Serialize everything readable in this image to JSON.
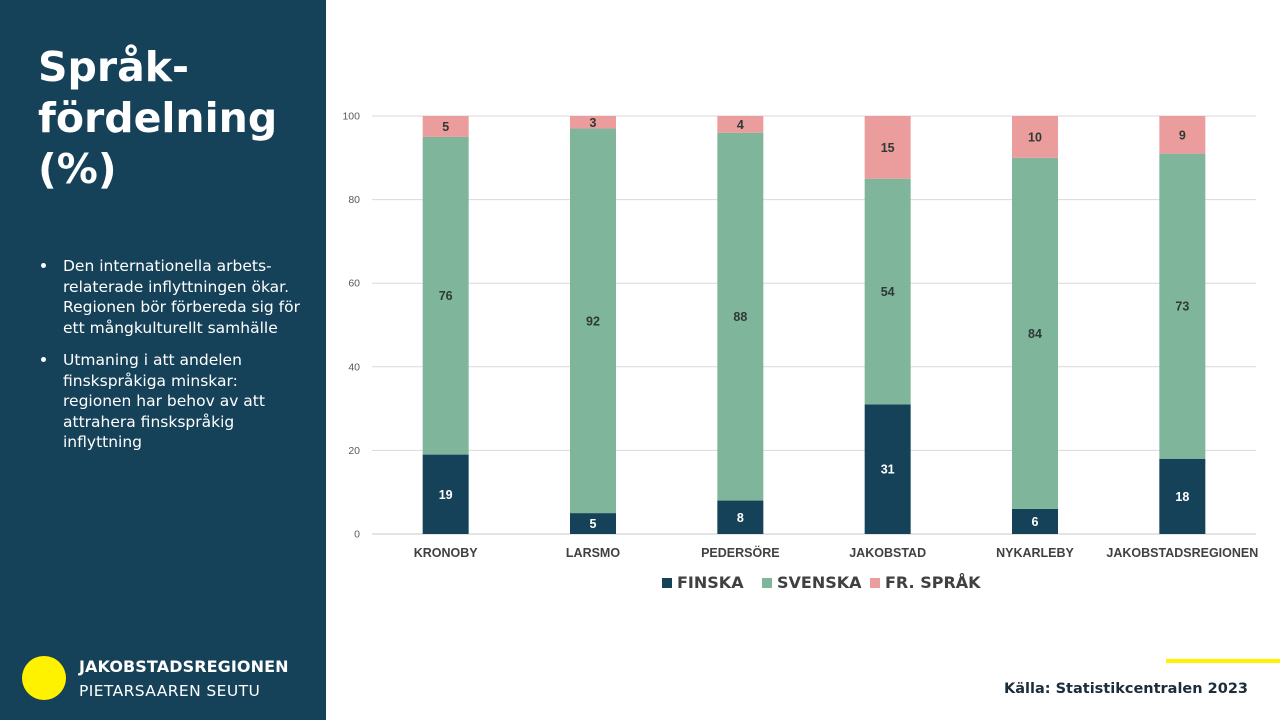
{
  "sidebar": {
    "title": "Språk-fördelning (%)",
    "bullets": [
      "Den internationella arbets-relaterade inflyttningen ökar. Regionen bör förbereda sig för ett mångkulturellt samhälle",
      "Utmaning i att andelen finskspråkiga minskar: regionen har behov av att attrahera finskspråkig inflyttning"
    ],
    "logo": {
      "line1": "JAKOBSTADSREGIONEN",
      "line2": "PIETARSAAREN SEUTU"
    }
  },
  "source": "Källa: Statistikcentralen 2023",
  "colors": {
    "sidebar_bg": "#164259",
    "accent_yellow": "#fff200",
    "finska": "#164259",
    "svenska": "#7fb59a",
    "fr_sprak": "#eb9c9c"
  },
  "chart_data": {
    "type": "bar",
    "stacked": true,
    "categories": [
      "KRONOBY",
      "LARSMO",
      "PEDERSÖRE",
      "JAKOBSTAD",
      "NYKARLEBY",
      "JAKOBSTADSREGIONEN"
    ],
    "series": [
      {
        "name": "FINSKA",
        "values": [
          19,
          5,
          8,
          31,
          6,
          18
        ],
        "labels": [
          "19",
          "5",
          "8",
          "31",
          "6",
          "18"
        ]
      },
      {
        "name": "SVENSKA",
        "values": [
          76,
          92,
          88,
          54,
          84,
          73
        ],
        "labels": [
          "76",
          "92",
          "88",
          "54",
          "84",
          "73"
        ]
      },
      {
        "name": "FR. SPRÅK",
        "values": [
          5,
          3,
          4,
          15,
          10,
          9
        ],
        "labels": [
          "5",
          "3",
          "4",
          "15",
          "10",
          "9"
        ]
      }
    ],
    "ylim": [
      0,
      100
    ],
    "yticks": [
      0,
      20,
      40,
      60,
      80,
      100
    ],
    "ytick_labels": [
      "0",
      "20",
      "40",
      "60",
      "80",
      "100"
    ],
    "grid": true,
    "legend": "bottom"
  }
}
